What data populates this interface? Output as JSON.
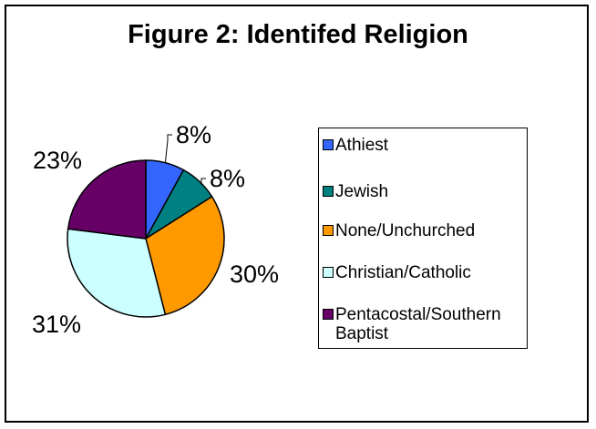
{
  "chart_data": {
    "type": "pie",
    "title": "Figure 2: Identifed Religion",
    "categories": [
      "Athiest",
      "Jewish",
      "None/Unchurched",
      "Christian/Catholic",
      "Pentacostal/Southern Baptist"
    ],
    "values": [
      8,
      8,
      30,
      31,
      23
    ],
    "labels": [
      "8%",
      "8%",
      "30%",
      "31%",
      "23%"
    ],
    "colors": [
      "#3366FF",
      "#008080",
      "#FF9900",
      "#CCFFFF",
      "#660066"
    ],
    "legend_position": "right"
  }
}
